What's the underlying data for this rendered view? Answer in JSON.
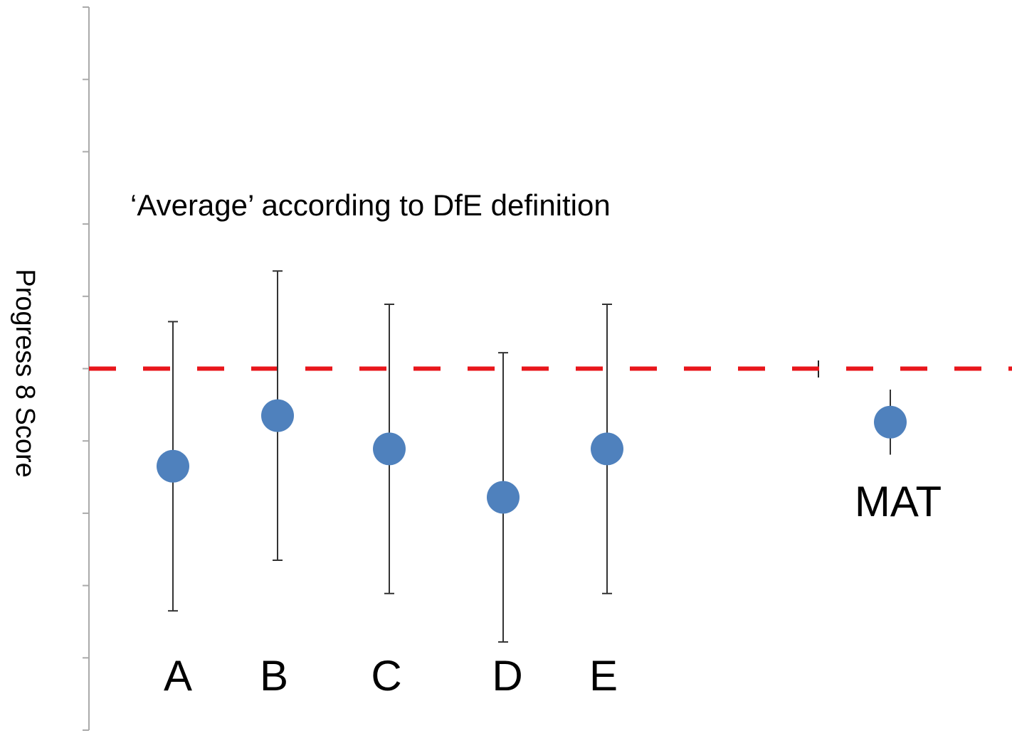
{
  "chart_data": {
    "type": "errorbar",
    "y_label": "Progress 8 Score",
    "annotation": "‘Average’ according to DfE definition",
    "categories": [
      "A",
      "B",
      "C",
      "D",
      "E",
      "MAT"
    ],
    "values": [
      -1.35,
      -0.65,
      -1.11,
      -1.78,
      -1.11,
      -0.74
    ],
    "errors": [
      2.0,
      2.0,
      2.0,
      2.0,
      2.0,
      0.45
    ],
    "color": "#4f81bd",
    "errorbar_color": "#333333",
    "reference_line": {
      "value": 0,
      "color": "#e8161b"
    },
    "ylim": [
      -5,
      5
    ],
    "yticks": [
      -5,
      -4,
      -3,
      -2,
      -1,
      0,
      1,
      2,
      3,
      4,
      5
    ]
  }
}
